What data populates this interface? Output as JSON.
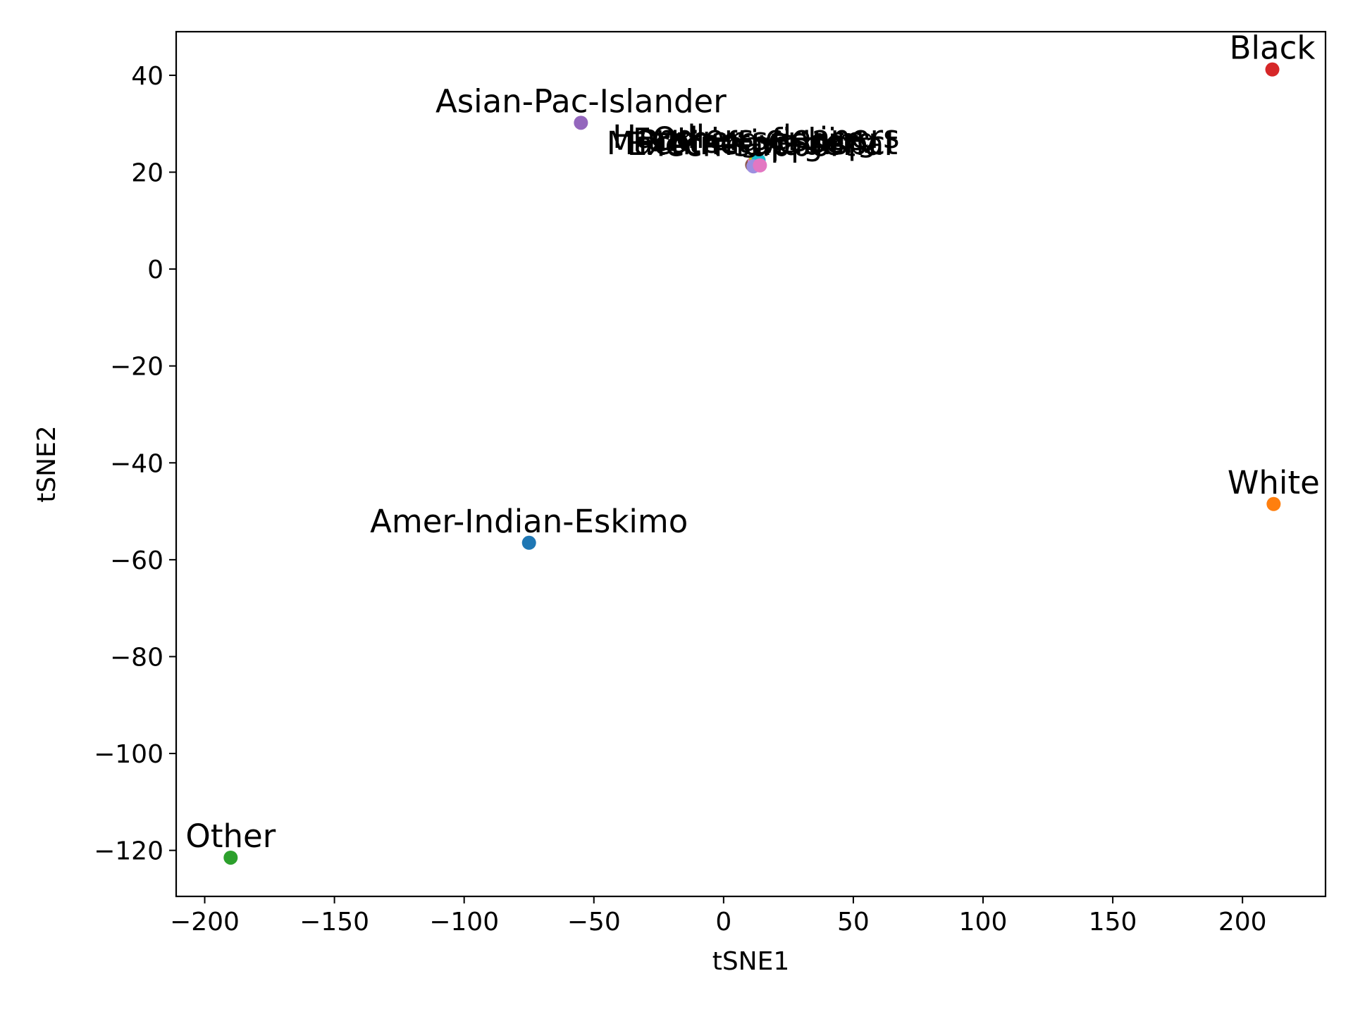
{
  "chart_data": {
    "type": "scatter",
    "xlabel": "tSNE1",
    "ylabel": "tSNE2",
    "xlim": [
      -211,
      232
    ],
    "ylim": [
      -129.5,
      49
    ],
    "xticks": [
      -200,
      -150,
      -100,
      -50,
      0,
      50,
      100,
      150,
      200
    ],
    "yticks": [
      40,
      20,
      0,
      -20,
      -40,
      -60,
      -80,
      -100,
      -120
    ],
    "grid": false,
    "legend": "none",
    "points": [
      {
        "label": "Amer-Indian-Eskimo",
        "x": -75,
        "y": -56.5,
        "color": "#1f77b4"
      },
      {
        "label": "White",
        "x": 212,
        "y": -48.5,
        "color": "#ff7f0e"
      },
      {
        "label": "Other",
        "x": -190,
        "y": -121.5,
        "color": "#2ca02c"
      },
      {
        "label": "Black",
        "x": 211.5,
        "y": 41.2,
        "color": "#d62728"
      },
      {
        "label": "Asian-Pac-Islander",
        "x": -55,
        "y": 30.2,
        "color": "#9467bd"
      },
      {
        "label": "Machine-op-inspct",
        "x": 11,
        "y": 21.5,
        "color": "#8c564b"
      },
      {
        "label": "Farming-fishing",
        "x": 12,
        "y": 22.2,
        "color": "#e377c2"
      },
      {
        "label": "Protective-serv",
        "x": 13,
        "y": 21.8,
        "color": "#7f7f7f"
      },
      {
        "label": "Handlers-cleaners",
        "x": 12.5,
        "y": 22.8,
        "color": "#bcbd22"
      },
      {
        "label": "Other-service",
        "x": 13.5,
        "y": 22.4,
        "color": "#17becf"
      },
      {
        "label": "Tech-support",
        "x": 11.5,
        "y": 21.2,
        "color": "#9d8fe0"
      },
      {
        "label": "Exec-managerial",
        "x": 14,
        "y": 21.4,
        "color": "#e377c2"
      }
    ]
  }
}
